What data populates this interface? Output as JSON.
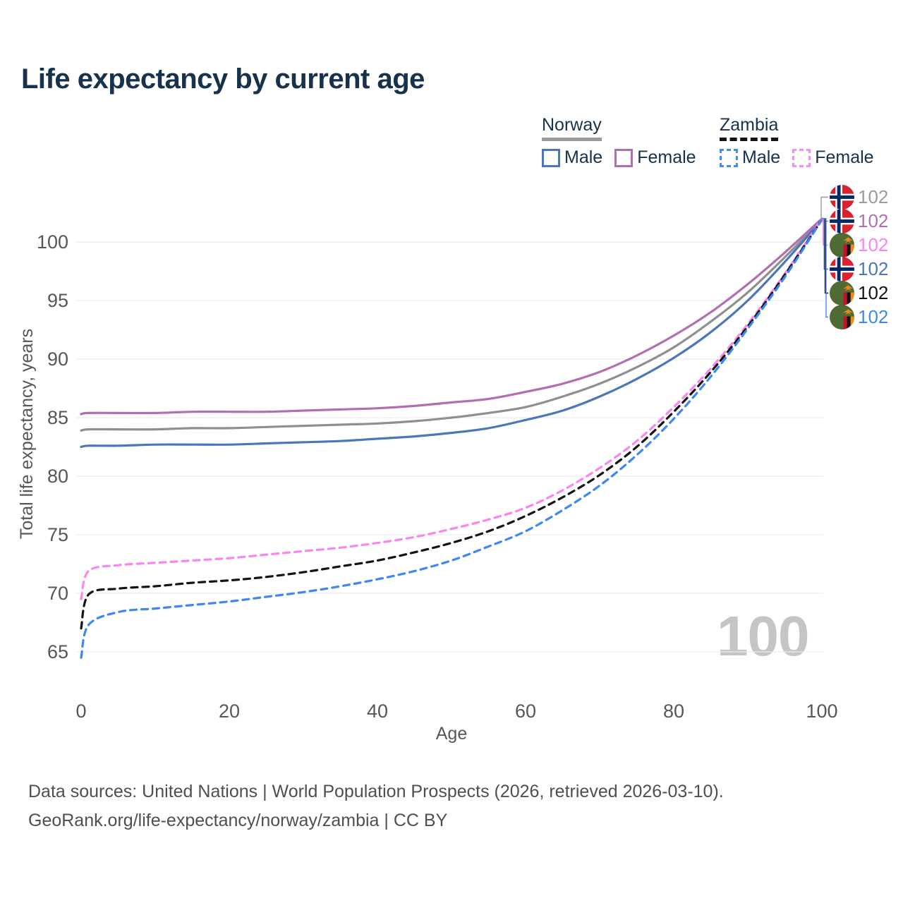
{
  "title": "Life expectancy by current age",
  "legend": {
    "groups": [
      {
        "name": "Norway",
        "line_style": "solid",
        "underline_color": "#9a9a9a",
        "items": [
          {
            "label": "Male",
            "color": "#4b77ba"
          },
          {
            "label": "Female",
            "color": "#b16fb1"
          }
        ]
      },
      {
        "name": "Zambia",
        "line_style": "dashed",
        "underline_color": "#141414",
        "items": [
          {
            "label": "Male",
            "color": "#4a8cf5"
          },
          {
            "label": "Female",
            "color": "#fb8cee"
          }
        ]
      }
    ]
  },
  "watermark": "100",
  "right_labels": [
    {
      "flag": "norway",
      "value": "102",
      "color": "#9b9b9b"
    },
    {
      "flag": "norway",
      "value": "102",
      "color": "#b16fb1"
    },
    {
      "flag": "zambia",
      "value": "102",
      "color": "#fb85ee"
    },
    {
      "flag": "norway",
      "value": "102",
      "color": "#4b77ba"
    },
    {
      "flag": "zambia",
      "value": "102",
      "color": "#141414"
    },
    {
      "flag": "zambia",
      "value": "102",
      "color": "#3f87f2"
    }
  ],
  "footer": {
    "line1": "Data sources: United Nations | World Population Prospects (2026, retrieved 2026-03-10).",
    "line2": "GeoRank.org/life-expectancy/norway/zambia | CC BY"
  },
  "chart_data": {
    "type": "line",
    "title": "Life expectancy by current age",
    "xlabel": "Age",
    "ylabel": "Total life expectancy, years",
    "x_ticks": [
      0,
      20,
      40,
      60,
      80,
      100
    ],
    "y_ticks": [
      65,
      70,
      75,
      80,
      85,
      90,
      95,
      100
    ],
    "xlim": [
      0,
      100
    ],
    "ylim": [
      63,
      103
    ],
    "grid": "horizontal-only",
    "grid_color": "#ececec",
    "axis_text_color": "#575757",
    "x": [
      0,
      1,
      5,
      10,
      15,
      20,
      25,
      30,
      35,
      40,
      45,
      50,
      55,
      60,
      65,
      70,
      75,
      80,
      85,
      90,
      95,
      100
    ],
    "series": [
      {
        "name": "Norway All",
        "country": "Norway",
        "sex": "All",
        "color": "#8f8f8f",
        "dashed": false,
        "values": [
          83.9,
          84.0,
          84.0,
          84.0,
          84.1,
          84.1,
          84.2,
          84.3,
          84.4,
          84.5,
          84.7,
          85.0,
          85.4,
          85.9,
          86.8,
          87.9,
          89.3,
          91.0,
          93.2,
          95.7,
          98.7,
          101.9
        ]
      },
      {
        "name": "Norway Female",
        "country": "Norway",
        "sex": "Female",
        "color": "#b16fb1",
        "dashed": false,
        "values": [
          85.3,
          85.4,
          85.4,
          85.4,
          85.5,
          85.5,
          85.5,
          85.6,
          85.7,
          85.8,
          86.0,
          86.3,
          86.6,
          87.2,
          87.9,
          88.9,
          90.3,
          92.0,
          94.0,
          96.4,
          99.1,
          102.0
        ]
      },
      {
        "name": "Norway Male",
        "country": "Norway",
        "sex": "Male",
        "color": "#4b77ba",
        "dashed": false,
        "values": [
          82.5,
          82.6,
          82.6,
          82.7,
          82.7,
          82.7,
          82.8,
          82.9,
          83.0,
          83.2,
          83.4,
          83.7,
          84.1,
          84.8,
          85.6,
          86.8,
          88.3,
          90.1,
          92.3,
          95.0,
          98.3,
          101.9
        ]
      },
      {
        "name": "Zambia Female",
        "country": "Zambia",
        "sex": "Female",
        "color": "#fb85ee",
        "dashed": true,
        "values": [
          69.5,
          71.9,
          72.4,
          72.6,
          72.8,
          73.0,
          73.3,
          73.6,
          73.9,
          74.3,
          74.8,
          75.5,
          76.3,
          77.3,
          78.8,
          80.7,
          83.0,
          85.9,
          89.2,
          93.0,
          97.3,
          102.0
        ]
      },
      {
        "name": "Zambia All",
        "country": "Zambia",
        "sex": "All",
        "color": "#141414",
        "dashed": true,
        "values": [
          67.0,
          69.9,
          70.4,
          70.6,
          70.9,
          71.1,
          71.4,
          71.8,
          72.3,
          72.8,
          73.5,
          74.3,
          75.3,
          76.6,
          78.2,
          80.1,
          82.5,
          85.5,
          88.9,
          92.8,
          97.2,
          101.9
        ]
      },
      {
        "name": "Zambia Male",
        "country": "Zambia",
        "sex": "Male",
        "color": "#3f87f2",
        "dashed": true,
        "values": [
          64.5,
          67.3,
          68.4,
          68.7,
          69.0,
          69.3,
          69.7,
          70.1,
          70.6,
          71.2,
          71.9,
          72.8,
          74.0,
          75.3,
          77.1,
          79.2,
          81.8,
          84.9,
          88.5,
          92.6,
          97.0,
          101.9
        ]
      }
    ],
    "end_value_labels": [
      "102",
      "102",
      "102",
      "102",
      "102",
      "102"
    ]
  }
}
